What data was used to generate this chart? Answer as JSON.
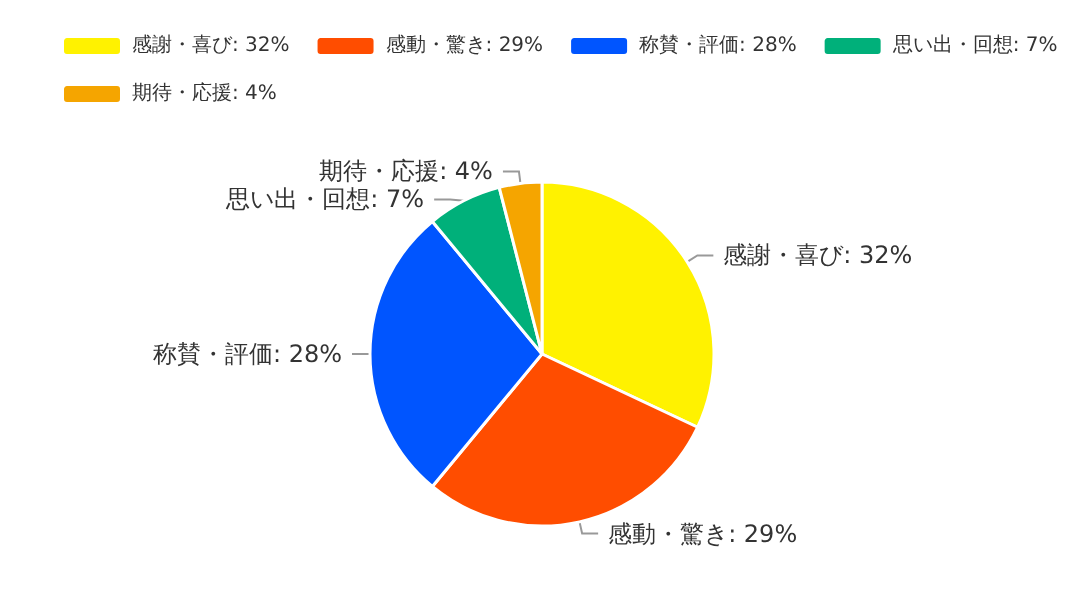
{
  "chart_data": {
    "type": "pie",
    "categories": [
      "感謝・喜び",
      "感動・驚き",
      "称賛・評価",
      "思い出・回想",
      "期待・応援"
    ],
    "values": [
      32,
      29,
      28,
      7,
      4
    ],
    "value_labels": [
      "32%",
      "29%",
      "28%",
      "7%",
      "4%"
    ],
    "colors": [
      "#fff200",
      "#ff4d00",
      "#0055ff",
      "#00b07a",
      "#f5a500"
    ],
    "legend": "top"
  }
}
